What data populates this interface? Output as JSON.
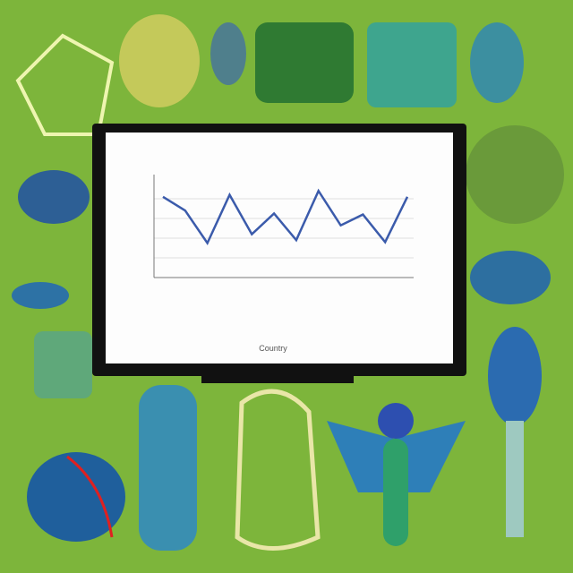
{
  "chart_data": {
    "type": "line",
    "x_label": "Country",
    "categories": [
      null,
      null,
      null,
      null,
      null,
      null,
      null,
      null,
      null,
      null,
      null,
      null
    ],
    "values": [
      8.2,
      6.8,
      3.5,
      8.4,
      4.4,
      6.5,
      3.8,
      8.8,
      5.3,
      6.4,
      3.6,
      8.2
    ],
    "color": "#3b5bab",
    "ylim": [
      0,
      10
    ]
  }
}
